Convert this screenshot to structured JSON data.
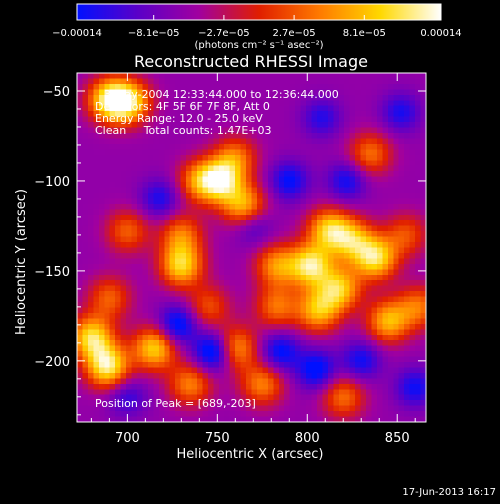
{
  "chart_data": {
    "type": "heatmap",
    "title": "Reconstructed RHESSI Image",
    "xlabel": "Heliocentric X (arcsec)",
    "ylabel": "Heliocentric Y (arcsec)",
    "xlim": [
      672,
      866
    ],
    "ylim": [
      -234,
      -40
    ],
    "x_ticks": [
      700,
      750,
      800,
      850
    ],
    "y_ticks": [
      -50,
      -100,
      -150,
      -200
    ],
    "x_tick_labels": [
      "700",
      "750",
      "800",
      "850"
    ],
    "y_tick_labels": [
      "−50",
      "−100",
      "−150",
      "−200"
    ],
    "colorbar": {
      "range": [
        -0.00014,
        0.00014
      ],
      "ticks": [
        -0.00014,
        -8.1e-05,
        -2.7e-05,
        2.7e-05,
        8.1e-05,
        0.00014
      ],
      "tick_labels": [
        "−0.00014",
        "−8.1e−05",
        "−2.7e−05",
        "2.7e−05",
        "8.1e−05",
        "0.00014"
      ],
      "unit_label": "(photons cm⁻² s⁻¹ asec⁻²)",
      "colors": [
        "#0010ff",
        "#5a00c8",
        "#a000a0",
        "#e01e00",
        "#ff7a00",
        "#ffd800",
        "#ffffff"
      ]
    },
    "annotations": [
      "3-May-2004 12:33:44.000 to 12:36:44.000",
      "Detectors: 4F 5F 6F 7F 8F, Att 0",
      "Energy Range: 12.0 - 25.0 keV",
      "Clean     Total counts: 1.47E+03"
    ],
    "peak_label": "Position of Peak = [689,-203]",
    "peak": [
      689,
      -203
    ],
    "hot_spots": [
      {
        "x": 690,
        "y": -55,
        "v": 0.95
      },
      {
        "x": 701,
        "y": -56,
        "v": 0.85
      },
      {
        "x": 752,
        "y": -100,
        "v": 0.9
      },
      {
        "x": 765,
        "y": -114,
        "v": 0.75
      },
      {
        "x": 740,
        "y": -100,
        "v": 0.6
      },
      {
        "x": 760,
        "y": -87,
        "v": 0.55
      },
      {
        "x": 812,
        "y": -127,
        "v": 0.8
      },
      {
        "x": 825,
        "y": -133,
        "v": 0.7
      },
      {
        "x": 838,
        "y": -143,
        "v": 0.9
      },
      {
        "x": 730,
        "y": -147,
        "v": 0.85
      },
      {
        "x": 730,
        "y": -130,
        "v": 0.55
      },
      {
        "x": 783,
        "y": -147,
        "v": 0.65
      },
      {
        "x": 802,
        "y": -147,
        "v": 0.95
      },
      {
        "x": 818,
        "y": -160,
        "v": 0.8
      },
      {
        "x": 806,
        "y": -172,
        "v": 0.75
      },
      {
        "x": 783,
        "y": -170,
        "v": 0.55
      },
      {
        "x": 689,
        "y": -203,
        "v": 1.0
      },
      {
        "x": 680,
        "y": -187,
        "v": 0.9
      },
      {
        "x": 715,
        "y": -193,
        "v": 0.85
      },
      {
        "x": 735,
        "y": -213,
        "v": 0.6
      },
      {
        "x": 760,
        "y": -193,
        "v": 0.7
      },
      {
        "x": 775,
        "y": -213,
        "v": 0.6
      },
      {
        "x": 845,
        "y": -178,
        "v": 0.75
      },
      {
        "x": 862,
        "y": -170,
        "v": 0.55
      },
      {
        "x": 820,
        "y": -220,
        "v": 0.55
      },
      {
        "x": 700,
        "y": -128,
        "v": 0.5
      },
      {
        "x": 835,
        "y": -85,
        "v": 0.55
      },
      {
        "x": 690,
        "y": -165,
        "v": 0.5
      },
      {
        "x": 745,
        "y": -170,
        "v": 0.45
      },
      {
        "x": 855,
        "y": -130,
        "v": 0.45
      }
    ],
    "cold_spots": [
      {
        "x": 748,
        "y": -195,
        "v": 1.0
      },
      {
        "x": 728,
        "y": -180,
        "v": 0.8
      },
      {
        "x": 785,
        "y": -195,
        "v": 0.7
      },
      {
        "x": 805,
        "y": -205,
        "v": 0.75
      },
      {
        "x": 830,
        "y": -200,
        "v": 0.6
      },
      {
        "x": 718,
        "y": -110,
        "v": 0.55
      },
      {
        "x": 790,
        "y": -100,
        "v": 0.65
      },
      {
        "x": 822,
        "y": -100,
        "v": 0.6
      },
      {
        "x": 808,
        "y": -65,
        "v": 0.5
      },
      {
        "x": 852,
        "y": -62,
        "v": 0.55
      },
      {
        "x": 860,
        "y": -215,
        "v": 0.6
      },
      {
        "x": 700,
        "y": -220,
        "v": 0.45
      },
      {
        "x": 770,
        "y": -125,
        "v": 0.45
      }
    ]
  },
  "footer": {
    "timestamp": "17-Jun-2013 16:17"
  }
}
